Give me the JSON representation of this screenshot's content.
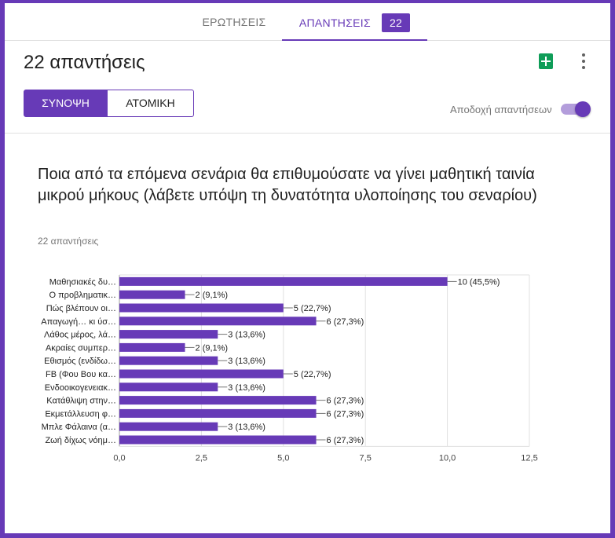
{
  "tabs": {
    "questions_label": "ΕΡΩΤΗΣΕΙΣ",
    "responses_label": "ΑΠΑΝΤΗΣΕΙΣ",
    "responses_count": "22"
  },
  "header": {
    "title": "22 απαντήσεις",
    "summary_label": "ΣΥΝΟΨΗ",
    "individual_label": "ΑΤΟΜΙΚΗ",
    "accepting_label": "Αποδοχή απαντήσεων"
  },
  "question": {
    "title": "Ποια από τα επόμενα σενάρια θα επιθυμούσατε να γίνει μαθητική ταινία μικρού μήκους (λάβετε υπόψη τη δυνατότητα υλοποίησης του σεναρίου)",
    "count": "22 απαντήσεις"
  },
  "colors": {
    "accent": "#673ab7",
    "sheets": "#0f9d58"
  },
  "icons": [
    "sheets-icon",
    "more-vert-icon",
    "toggle-switch"
  ],
  "chart_data": {
    "type": "bar",
    "orientation": "horizontal",
    "categories": [
      "Μαθησιακές δυ…",
      "Ο προβληματικ…",
      "Πώς βλέπουν οι…",
      "Απαγωγή… κι ύσ…",
      "Λάθος μέρος, λά…",
      "Ακραίες συμπερ…",
      "Εθισμός (ενδίδω…",
      "FB (Φου Βου κα…",
      "Ενδοοικογενειακ…",
      "Κατάθλιψη στην…",
      "Εκμετάλλευση φ…",
      "Μπλε Φάλαινα (α…",
      "Ζωή δίχως νόημ…"
    ],
    "values": [
      10,
      2,
      5,
      6,
      3,
      2,
      3,
      5,
      3,
      6,
      6,
      3,
      6
    ],
    "value_labels": [
      "10 (45,5%)",
      "2 (9,1%)",
      "5 (22,7%)",
      "6 (27,3%)",
      "3 (13,6%)",
      "2 (9,1%)",
      "3 (13,6%)",
      "5 (22,7%)",
      "3 (13,6%)",
      "6 (27,3%)",
      "6 (27,3%)",
      "3 (13,6%)",
      "6 (27,3%)"
    ],
    "xticks": [
      "0,0",
      "2,5",
      "5,0",
      "7,5",
      "10,0",
      "12,5"
    ],
    "xtick_values": [
      0,
      2.5,
      5,
      7.5,
      10,
      12.5
    ],
    "xlim": [
      0,
      12.5
    ],
    "grid": true,
    "bar_color": "#673ab7"
  }
}
